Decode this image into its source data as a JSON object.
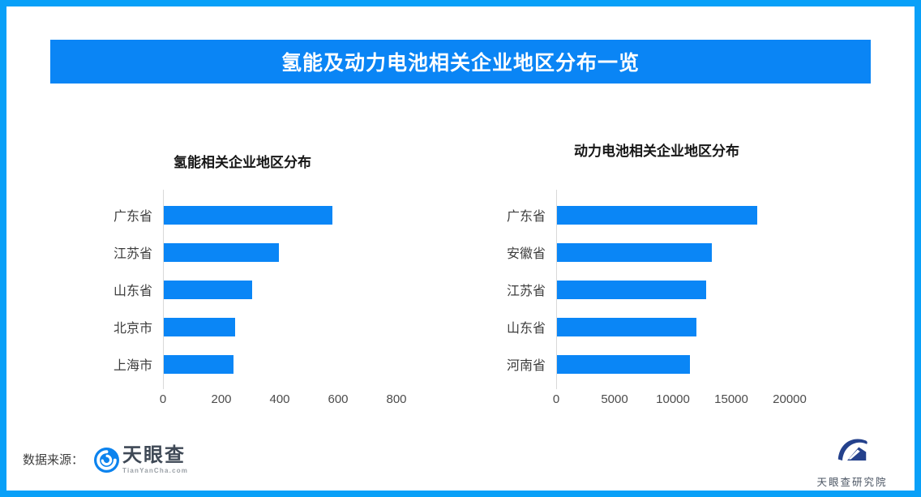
{
  "page": {
    "border_color": "#09a0f8",
    "accent_blue": "#0a86f6"
  },
  "banner": {
    "title": "氢能及动力电池相关企业地区分布一览"
  },
  "chart_data": [
    {
      "type": "bar",
      "orientation": "horizontal",
      "title": "氢能相关企业地区分布",
      "categories": [
        "广东省",
        "江苏省",
        "山东省",
        "北京市",
        "上海市"
      ],
      "values": [
        580,
        395,
        305,
        245,
        240
      ],
      "xlim": [
        0,
        800
      ],
      "xticks": [
        0,
        200,
        400,
        600,
        800
      ],
      "bar_color": "#0a86f6",
      "grid": false,
      "legend": false
    },
    {
      "type": "bar",
      "orientation": "horizontal",
      "title": "动力电池相关企业地区分布",
      "categories": [
        "广东省",
        "安徽省",
        "江苏省",
        "山东省",
        "河南省"
      ],
      "values": [
        17200,
        13300,
        12800,
        12000,
        11400
      ],
      "xlim": [
        0,
        20000
      ],
      "xticks": [
        0,
        5000,
        10000,
        15000,
        20000
      ],
      "bar_color": "#0a86f6",
      "grid": false,
      "legend": false
    }
  ],
  "footer": {
    "source_label": "数据来源：",
    "tianyancha_name": "天眼查",
    "tianyancha_sub": "TianYanCha.com",
    "research_name": "天眼查研究院"
  }
}
